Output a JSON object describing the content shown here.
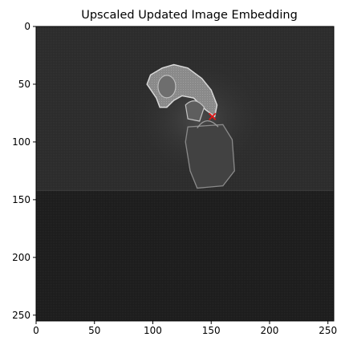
{
  "chart_data": {
    "type": "heatmap",
    "title": "Upscaled Updated Image Embedding",
    "xlabel": "",
    "ylabel": "",
    "xlim": [
      0,
      255
    ],
    "ylim": [
      255,
      0
    ],
    "x_ticks": [
      0,
      50,
      100,
      150,
      200,
      250
    ],
    "y_ticks": [
      0,
      50,
      100,
      150,
      200,
      250
    ],
    "colormap": "grayscale",
    "grid": false,
    "marker": {
      "x": 151,
      "y": 78,
      "shape": "x",
      "color": "#e01818"
    },
    "regions": [
      {
        "name": "upper-background",
        "y_range": [
          0,
          142
        ],
        "tone": "#2b2b2b"
      },
      {
        "name": "lower-background",
        "y_range": [
          142,
          255
        ],
        "tone": "#1c1c1c"
      }
    ],
    "objects": [
      "figure-head",
      "figure-bag"
    ]
  }
}
